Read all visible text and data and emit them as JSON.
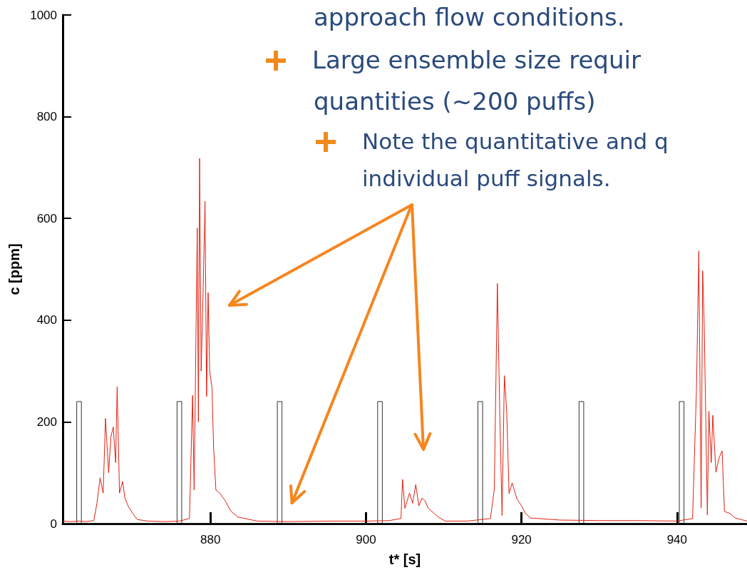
{
  "chart_data": {
    "type": "line",
    "xlabel": "t* [s]",
    "ylabel": "c [ppm]",
    "annotations": [
      "approach flow conditions.",
      "Large ensemble size requir",
      "quantities (~200 puffs)",
      "Note the quantitative and q",
      "individual puff signals."
    ],
    "xlim": [
      861,
      949
    ],
    "xticks": [
      880,
      900,
      920,
      940
    ],
    "ylim": [
      0,
      1000
    ],
    "yticks": [
      0,
      200,
      400,
      600,
      800,
      1000
    ],
    "grid": false,
    "marker": "none",
    "line_style": "solid",
    "series": [
      {
        "color": "#333333",
        "x": [
          861,
          862.8,
          862.8,
          863.4,
          863.4,
          875.7,
          875.7,
          876.3,
          876.3,
          888.6,
          888.6,
          889.2,
          889.2,
          901.5,
          901.5,
          902.1,
          902.1,
          914.4,
          914.4,
          915.0,
          915.0,
          927.4,
          927.4,
          928.0,
          928.0,
          940.3,
          940.3,
          940.9,
          940.9,
          949
        ],
        "values": [
          0,
          0,
          240,
          240,
          0,
          0,
          240,
          240,
          0,
          0,
          240,
          240,
          0,
          0,
          240,
          240,
          0,
          0,
          240,
          240,
          0,
          0,
          240,
          240,
          0,
          0,
          240,
          240,
          0,
          0
        ]
      },
      {
        "color": "#e02010",
        "x": [
          861,
          862,
          863,
          864,
          865,
          865.4,
          865.8,
          866.2,
          866.5,
          866.9,
          867.2,
          867.5,
          867.8,
          868.0,
          868.3,
          868.7,
          869.0,
          869.4,
          870.0,
          870.6,
          872,
          874,
          876,
          877.3,
          877.7,
          877.9,
          878.3,
          878.45,
          878.6,
          878.8,
          879.0,
          879.3,
          879.5,
          879.7,
          879.9,
          880.2,
          880.4,
          880.7,
          881.2,
          881.9,
          882.6,
          883.5,
          886,
          890,
          895,
          900,
          903,
          904.5,
          904.7,
          905.0,
          905.6,
          906.0,
          906.4,
          906.8,
          907.2,
          907.6,
          908.0,
          908.7,
          909.4,
          910.2,
          913,
          916.0,
          916.5,
          916.9,
          917.2,
          917.5,
          917.8,
          918.1,
          918.4,
          918.8,
          919.4,
          920.0,
          920.5,
          921.2,
          925,
          930,
          935,
          940,
          942.0,
          942.5,
          942.8,
          943.1,
          943.3,
          943.5,
          943.9,
          944.1,
          944.4,
          944.6,
          945.0,
          945.4,
          945.8,
          946.1,
          946.8,
          947.5,
          949
        ],
        "values": [
          5,
          4,
          5,
          4,
          6,
          40,
          90,
          60,
          207,
          100,
          171,
          190,
          120,
          269,
          60,
          83,
          50,
          35,
          20,
          8,
          5,
          4,
          5,
          10,
          252,
          66,
          581,
          200,
          718,
          300,
          420,
          634,
          250,
          454,
          300,
          266,
          150,
          66,
          60,
          45,
          25,
          13,
          5,
          4,
          5,
          5,
          6,
          10,
          87,
          30,
          60,
          40,
          77,
          35,
          50,
          45,
          30,
          21,
          12,
          5,
          5,
          10,
          67,
          472,
          221,
          16,
          291,
          220,
          59,
          80,
          49,
          35,
          20,
          11,
          7,
          6,
          6,
          5,
          10,
          263,
          536,
          31,
          497,
          389,
          17,
          221,
          120,
          213,
          101,
          129,
          143,
          24,
          20,
          11,
          5
        ]
      }
    ]
  }
}
